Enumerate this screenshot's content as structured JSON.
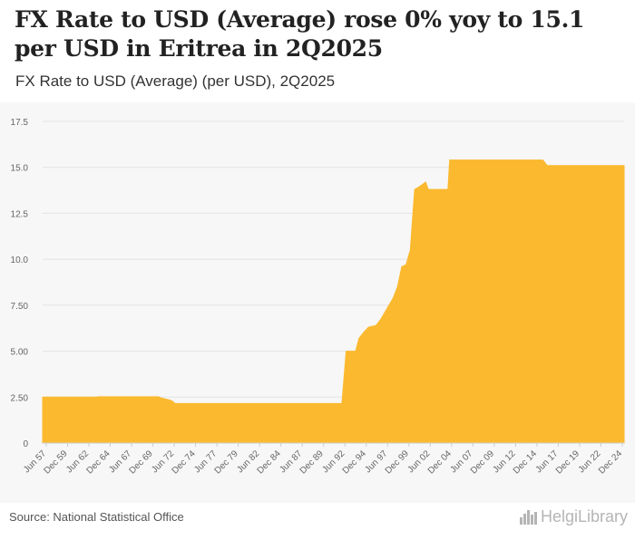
{
  "header": {
    "title": "FX Rate to USD (Average) rose 0% yoy to 15.1 per USD in Eritrea in 2Q2025",
    "subtitle": "FX Rate to USD (Average) (per USD), 2Q2025"
  },
  "footer": {
    "source": "Source: National Statistical Office",
    "brand": "HelgiLibrary"
  },
  "colors": {
    "area": "#fbb92f",
    "grid": "#e3e3e3",
    "axis_text": "#666666"
  },
  "chart_data": {
    "type": "area",
    "title": "FX Rate to USD (Average) (per USD), 2Q2025",
    "xlabel": "",
    "ylabel": "",
    "xlim": [
      1957.5,
      2025.5
    ],
    "ylim": [
      0,
      17.5
    ],
    "yticks": [
      "0",
      "2.50",
      "5.00",
      "7.50",
      "10.0",
      "12.5",
      "15.0",
      "17.5"
    ],
    "xticks": [
      "Jun 57",
      "Dec 59",
      "Jun 62",
      "Dec 64",
      "Jun 67",
      "Dec 69",
      "Jun 72",
      "Dec 74",
      "Jun 77",
      "Dec 79",
      "Jun 82",
      "Dec 84",
      "Jun 87",
      "Dec 89",
      "Jun 92",
      "Dec 94",
      "Jun 97",
      "Dec 99",
      "Jun 02",
      "Dec 04",
      "Jun 07",
      "Dec 09",
      "Jun 12",
      "Dec 14",
      "Jun 17",
      "Dec 19",
      "Jun 22",
      "Dec 24"
    ],
    "series": [
      {
        "name": "FX Rate to USD (Average)",
        "x": [
          1957.5,
          1963.9,
          1964.0,
          1971.0,
          1971.4,
          1972.3,
          1972.6,
          1973.0,
          1992.5,
          1993.0,
          1993.4,
          1994.1,
          1994.5,
          1995.0,
          1995.6,
          1996.0,
          1996.5,
          1997.0,
          1997.5,
          1998.0,
          1998.5,
          1999.0,
          1999.5,
          2000.0,
          2000.5,
          2001.0,
          2001.4,
          2001.7,
          2002.0,
          2002.3,
          2002.6,
          2003.0,
          2003.3,
          2003.5,
          2004.9,
          2005.1,
          2016.0,
          2016.5,
          2025.5
        ],
        "values": [
          2.5,
          2.5,
          2.52,
          2.52,
          2.45,
          2.35,
          2.3,
          2.15,
          2.15,
          5.0,
          5.0,
          5.0,
          5.7,
          6.0,
          6.3,
          6.35,
          6.4,
          6.7,
          7.1,
          7.5,
          7.9,
          8.5,
          9.6,
          9.7,
          10.5,
          13.8,
          13.9,
          14.0,
          14.1,
          14.2,
          13.8,
          13.8,
          13.8,
          13.8,
          13.8,
          15.4,
          15.4,
          15.1,
          15.1
        ]
      }
    ]
  }
}
